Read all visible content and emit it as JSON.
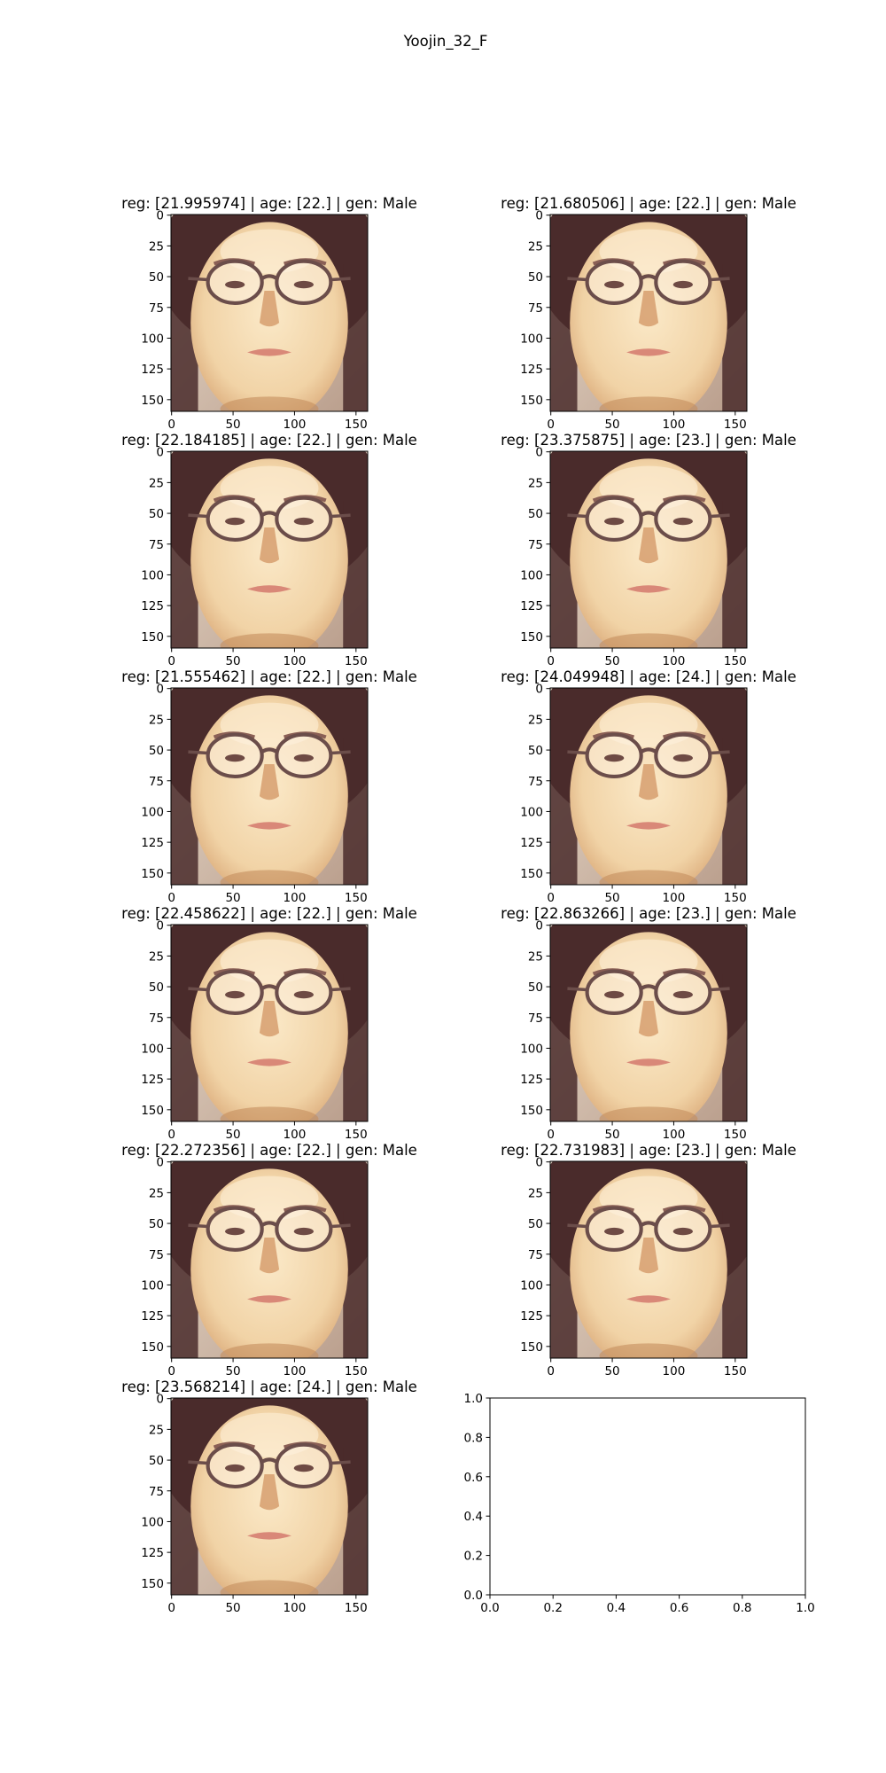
{
  "figure": {
    "suptitle": "Yoojin_32_F"
  },
  "colors": {
    "background": "#ffffff",
    "axes": "#000000",
    "face_skin": "#f1d3a6",
    "hair": "#4a2b2b",
    "glasses": "#6b4d4a"
  },
  "chart_data": [
    {
      "type": "image",
      "title": "reg: [21.995974] | age: [22.] | gen: Male",
      "image_size": [
        160,
        160
      ],
      "xticks": [
        "0",
        "50",
        "100",
        "150"
      ],
      "yticks": [
        "0",
        "25",
        "50",
        "75",
        "100",
        "125",
        "150"
      ]
    },
    {
      "type": "image",
      "title": "reg: [21.680506] | age: [22.] | gen: Male",
      "image_size": [
        160,
        160
      ],
      "xticks": [
        "0",
        "50",
        "100",
        "150"
      ],
      "yticks": [
        "0",
        "25",
        "50",
        "75",
        "100",
        "125",
        "150"
      ]
    },
    {
      "type": "image",
      "title": "reg: [22.184185] | age: [22.] | gen: Male",
      "image_size": [
        160,
        160
      ],
      "xticks": [
        "0",
        "50",
        "100",
        "150"
      ],
      "yticks": [
        "0",
        "25",
        "50",
        "75",
        "100",
        "125",
        "150"
      ]
    },
    {
      "type": "image",
      "title": "reg: [23.375875] | age: [23.] | gen: Male",
      "image_size": [
        160,
        160
      ],
      "xticks": [
        "0",
        "50",
        "100",
        "150"
      ],
      "yticks": [
        "0",
        "25",
        "50",
        "75",
        "100",
        "125",
        "150"
      ]
    },
    {
      "type": "image",
      "title": "reg: [21.555462] | age: [22.] | gen: Male",
      "image_size": [
        160,
        160
      ],
      "xticks": [
        "0",
        "50",
        "100",
        "150"
      ],
      "yticks": [
        "0",
        "25",
        "50",
        "75",
        "100",
        "125",
        "150"
      ]
    },
    {
      "type": "image",
      "title": "reg: [24.049948] | age: [24.] | gen: Male",
      "image_size": [
        160,
        160
      ],
      "xticks": [
        "0",
        "50",
        "100",
        "150"
      ],
      "yticks": [
        "0",
        "25",
        "50",
        "75",
        "100",
        "125",
        "150"
      ]
    },
    {
      "type": "image",
      "title": "reg: [22.458622] | age: [22.] | gen: Male",
      "image_size": [
        160,
        160
      ],
      "xticks": [
        "0",
        "50",
        "100",
        "150"
      ],
      "yticks": [
        "0",
        "25",
        "50",
        "75",
        "100",
        "125",
        "150"
      ]
    },
    {
      "type": "image",
      "title": "reg: [22.863266] | age: [23.] | gen: Male",
      "image_size": [
        160,
        160
      ],
      "xticks": [
        "0",
        "50",
        "100",
        "150"
      ],
      "yticks": [
        "0",
        "25",
        "50",
        "75",
        "100",
        "125",
        "150"
      ]
    },
    {
      "type": "image",
      "title": "reg: [22.272356] | age: [22.] | gen: Male",
      "image_size": [
        160,
        160
      ],
      "xticks": [
        "0",
        "50",
        "100",
        "150"
      ],
      "yticks": [
        "0",
        "25",
        "50",
        "75",
        "100",
        "125",
        "150"
      ]
    },
    {
      "type": "image",
      "title": "reg: [22.731983] | age: [23.] | gen: Male",
      "image_size": [
        160,
        160
      ],
      "xticks": [
        "0",
        "50",
        "100",
        "150"
      ],
      "yticks": [
        "0",
        "25",
        "50",
        "75",
        "100",
        "125",
        "150"
      ]
    },
    {
      "type": "image",
      "title": "reg: [23.568214] | age: [24.] | gen: Male",
      "image_size": [
        160,
        160
      ],
      "xticks": [
        "0",
        "50",
        "100",
        "150"
      ],
      "yticks": [
        "0",
        "25",
        "50",
        "75",
        "100",
        "125",
        "150"
      ]
    },
    {
      "type": "empty",
      "title": "",
      "xlim": [
        0,
        1
      ],
      "ylim": [
        0,
        1
      ],
      "xticks": [
        "0.0",
        "0.2",
        "0.4",
        "0.6",
        "0.8",
        "1.0"
      ],
      "yticks": [
        "0.0",
        "0.2",
        "0.4",
        "0.6",
        "0.8",
        "1.0"
      ]
    }
  ]
}
